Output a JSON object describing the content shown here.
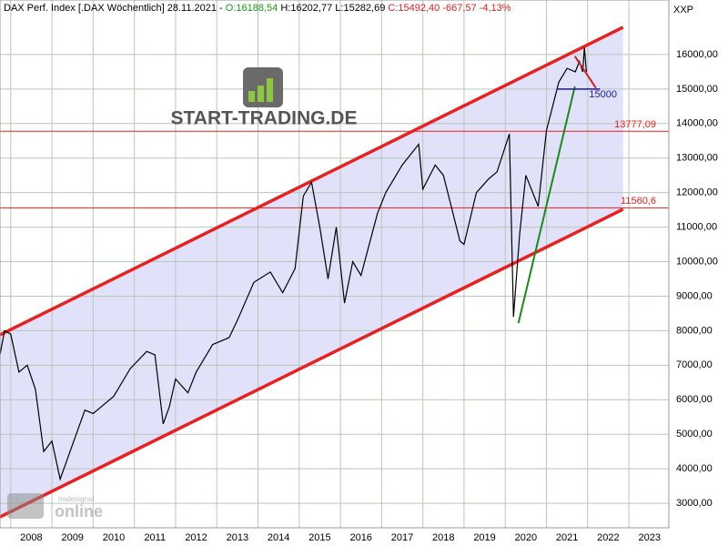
{
  "header": {
    "title": "DAX Perf. Index [.DAX  Wöchentlich] 28.11.2021 -",
    "open": "O:16188,54",
    "high": "H:16202,77",
    "low": "L:15282,69",
    "close": "C:15492,40 -667,57 -4,13%"
  },
  "axis_name": "XXP",
  "logo": "START-TRADING.DE",
  "watermark": {
    "small": "tradesignal",
    "big": "online"
  },
  "chart_data": {
    "type": "line",
    "x": [
      2007.74,
      2007.85,
      2008.0,
      2008.2,
      2008.4,
      2008.6,
      2008.8,
      2009.0,
      2009.2,
      2009.5,
      2009.8,
      2010.0,
      2010.5,
      2010.9,
      2011.3,
      2011.5,
      2011.7,
      2011.85,
      2012.0,
      2012.3,
      2012.5,
      2012.9,
      2013.3,
      2013.5,
      2013.9,
      2014.3,
      2014.6,
      2014.9,
      2015.1,
      2015.3,
      2015.5,
      2015.7,
      2015.9,
      2016.1,
      2016.3,
      2016.5,
      2016.9,
      2017.1,
      2017.5,
      2017.9,
      2018.0,
      2018.3,
      2018.5,
      2018.9,
      2019.0,
      2019.3,
      2019.6,
      2019.8,
      2020.1,
      2020.2,
      2020.35,
      2020.5,
      2020.8,
      2021.0,
      2021.3,
      2021.5,
      2021.7,
      2021.8,
      2021.88,
      2021.92,
      2021.97
    ],
    "series": [
      {
        "name": "DAX",
        "color": "#000000",
        "values": [
          7300,
          8000,
          7900,
          6800,
          7000,
          6300,
          4500,
          4800,
          3700,
          4700,
          5700,
          5600,
          6100,
          6900,
          7400,
          7300,
          5300,
          5800,
          6600,
          6200,
          6800,
          7600,
          7800,
          8300,
          9400,
          9700,
          9100,
          9800,
          11900,
          12300,
          11000,
          9500,
          11000,
          8800,
          10000,
          9600,
          11400,
          12000,
          12800,
          13400,
          12100,
          12800,
          12500,
          10600,
          10500,
          12000,
          12400,
          12600,
          13700,
          8400,
          10800,
          12500,
          11600,
          13800,
          15200,
          15600,
          15500,
          15800,
          15500,
          16200,
          15500
        ]
      }
    ],
    "xlim": [
      2007.74,
      2023.97
    ],
    "ylim": [
      2290,
      17580
    ],
    "xticks": [
      2008,
      2009,
      2010,
      2011,
      2012,
      2013,
      2014,
      2015,
      2016,
      2017,
      2018,
      2019,
      2020,
      2021,
      2022,
      2023
    ],
    "yticks": [
      {
        "value": 3000,
        "label": "3000,00"
      },
      {
        "value": 4000,
        "label": "4000,00"
      },
      {
        "value": 5000,
        "label": "5000,00"
      },
      {
        "value": 6000,
        "label": "6000,00"
      },
      {
        "value": 7000,
        "label": "7000,00"
      },
      {
        "value": 8000,
        "label": "8000,00"
      },
      {
        "value": 9000,
        "label": "9000,00"
      },
      {
        "value": 10000,
        "label": "10000,00"
      },
      {
        "value": 11000,
        "label": "11000,00"
      },
      {
        "value": 12000,
        "label": "12000,00"
      },
      {
        "value": 13000,
        "label": "13000,00"
      },
      {
        "value": 14000,
        "label": "14000,00"
      },
      {
        "value": 15000,
        "label": "15000,00"
      },
      {
        "value": 16000,
        "label": "16000,00"
      }
    ],
    "grid": true,
    "channel": {
      "color": "#e82020",
      "fill": "#dcdcf8",
      "x": [
        2007.74,
        2022.86
      ],
      "upper": [
        7880,
        16790
      ],
      "lower": [
        2604,
        11517
      ]
    },
    "hlines": [
      {
        "value": 13777.09,
        "label": "13777,09",
        "color": "#e82020"
      },
      {
        "value": 11560.6,
        "label": "11560,6",
        "color": "#e82020"
      }
    ],
    "trendlines": [
      {
        "color": "#1a8a1a",
        "x": [
          2020.32,
          2021.69
        ],
        "values": [
          8220,
          15077
        ]
      },
      {
        "color": "#cc2020",
        "x": [
          2021.69,
          2022.2
        ],
        "values": [
          15950,
          15030
        ]
      }
    ],
    "level": {
      "value": 15000,
      "label": "15000",
      "color": "#1a1aa0",
      "x": [
        2021.25,
        2022.3
      ]
    }
  }
}
